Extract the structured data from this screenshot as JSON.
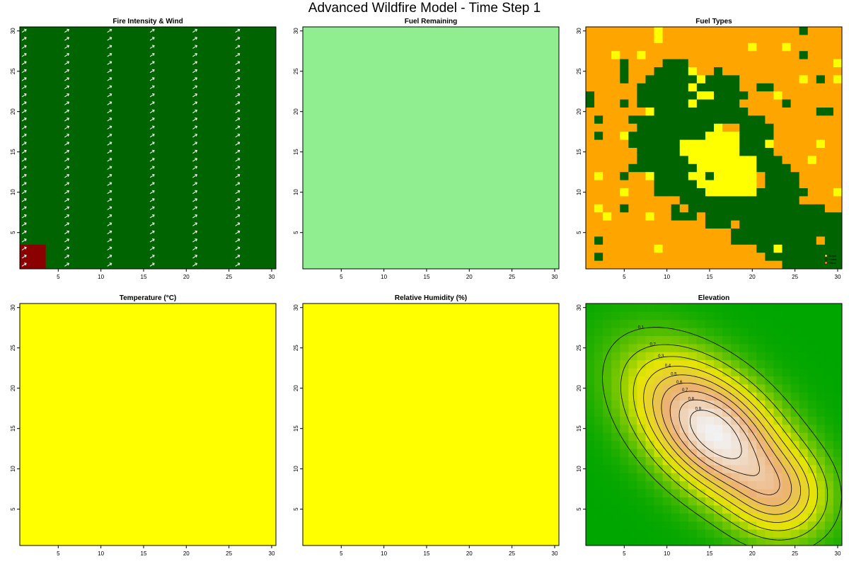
{
  "figure": {
    "title": "Advanced Wildfire Model - Time Step 1"
  },
  "colors": {
    "forest_green": "#006400",
    "burning_red": "#8B0000",
    "light_green": "#90EE90",
    "yellow": "#FFFF00",
    "orange": "#FFA500",
    "wind_arrow": "#FFFFFF"
  },
  "chart_data": [
    {
      "id": "fire",
      "type": "heatmap",
      "title": "Fire Intensity & Wind",
      "xlabel": "",
      "ylabel": "",
      "xlim": [
        0.5,
        30.5
      ],
      "ylim": [
        0.5,
        30.5
      ],
      "xticks": [
        5,
        10,
        15,
        20,
        25,
        30
      ],
      "yticks": [
        5,
        10,
        15,
        20,
        25,
        30
      ],
      "grid": false,
      "background": "#006400",
      "burning_cells": {
        "color": "#8B0000",
        "x_range": [
          1,
          3
        ],
        "y_range": [
          1,
          3
        ]
      },
      "wind": {
        "direction": "north-east",
        "color": "#FFFFFF",
        "x": [
          1,
          6,
          11,
          16,
          21,
          26
        ],
        "y_from": 1,
        "y_to": 30
      }
    },
    {
      "id": "fuel_remaining",
      "type": "heatmap",
      "title": "Fuel Remaining",
      "xlim": [
        0.5,
        30.5
      ],
      "ylim": [
        0.5,
        30.5
      ],
      "xticks": [
        5,
        10,
        15,
        20,
        25,
        30
      ],
      "yticks": [
        5,
        10,
        15,
        20,
        25,
        30
      ],
      "grid": false,
      "uniform_color": "#90EE90"
    },
    {
      "id": "fuel_types",
      "type": "heatmap",
      "title": "Fuel Types",
      "xlim": [
        0.5,
        30.5
      ],
      "ylim": [
        0.5,
        30.5
      ],
      "xticks": [
        5,
        10,
        15,
        20,
        25,
        30
      ],
      "yticks": [
        5,
        10,
        15,
        20,
        25,
        30
      ],
      "grid": false,
      "legend_position": "bottom-right",
      "categories": [
        {
          "name": "Grass",
          "color": "#FFFF00"
        },
        {
          "name": "Forest",
          "color": "#006400"
        },
        {
          "name": "Shrub",
          "color": "#FFA500"
        }
      ],
      "grid_rows_top_to_bottom": [
        "OOOOOOOOYOOOOOOOOOOOOOOOOGOOOO",
        "OOOOOOOOYOOOOOOOOOOOOOOOOOOOOO",
        "OOOOOOOOOOOOOOOOOOOYOOOYOOOOOO",
        "OOOYOOYOOOOOOOOOOOOOOOOOOGOOOO",
        "OOOOGOOOOGGGOOOOOOOOOOOOOOOOOY",
        "OOOOGOOOGGGGYOOGOOOOOOOOOOOOOO",
        "OOOOGOOGGGGGGYGGGGOOOOOOOYOGOY",
        "OOOOOOGGGGGGYGGGGGOOGGOOOOOOOO",
        "GOOOOOGGGGGGGYYGGGGOOOYOOOOOOO",
        "GOOOGOGGGGGGYGGGGGOOOOOGOOOOOO",
        "OOOOOOOYGGGGGGGGGGGOOOOOOOOGGO",
        "OGOOOGGGGGGGGGGGGGGGGOOOOOOOOO",
        "OOOOOOGGGGGGGGGYOOGGGGOOOOOOOO",
        "OGOOYGGGGGGGGGYYYYGGGGOOOOOOOO",
        "OOOOOGGGGGGYYYYYYYGGGYOOOOOYOO",
        "OOOOOOGGGGGYYYYYYYGGGGOOOOOOOO",
        "OOOOOOGGGGGGYYYYYYYYGGGOOOYOOO",
        "OOOOOGGGGGGGGYYYYYYYGGGGOOOOOO",
        "OYOOGOOYGGGGYYGYYYYYOGGGGOOOOO",
        "OOOOOOOOGGGGGYYYYYYYOGGGGOOOOO",
        "OOOOYOOOGGGGGGYYYYYYGGGGGGOOOY",
        "OOOOOOOOOOOGGGGGGGGGGGGGGOOOOO",
        "OYOOGOOOOOGOGGGGGGGGGGGGGGGGOO",
        "OOYOOOOYOOGGGOGGGGGGGGGGGGGGGG",
        "OOOOOOOOOOOOOOGGGOGGGGGGGGGGGG",
        "OOOOOOOOOOOOOOOOOGGGGGGGGGGGGG",
        "OGOOOOOOOOOOOOOOOGGGGGGGGGGOGG",
        "OOOOOOOOYOOOOOOOOOOOGGYGGGGGGG",
        "OGOOOOOOOOOOOOOOOOOOOGGGGGGGGG",
        "OOOOOOOOOOOOOOOOOOOOOOOGGGGGGG"
      ]
    },
    {
      "id": "temperature",
      "type": "heatmap",
      "title": "Temperature (°C)",
      "xlim": [
        0.5,
        30.5
      ],
      "ylim": [
        0.5,
        30.5
      ],
      "xticks": [
        5,
        10,
        15,
        20,
        25,
        30
      ],
      "yticks": [
        5,
        10,
        15,
        20,
        25,
        30
      ],
      "grid": false,
      "uniform_color": "#FFFF00"
    },
    {
      "id": "humidity",
      "type": "heatmap",
      "title": "Relative Humidity (%)",
      "xlim": [
        0.5,
        30.5
      ],
      "ylim": [
        0.5,
        30.5
      ],
      "xticks": [
        5,
        10,
        15,
        20,
        25,
        30
      ],
      "yticks": [
        5,
        10,
        15,
        20,
        25,
        30
      ],
      "grid": false,
      "uniform_color": "#FFFF00"
    },
    {
      "id": "elevation",
      "type": "heatmap",
      "title": "Elevation",
      "xlim": [
        0.5,
        30.5
      ],
      "ylim": [
        0.5,
        30.5
      ],
      "xticks": [
        5,
        10,
        15,
        20,
        25,
        30
      ],
      "yticks": [
        5,
        10,
        15,
        20,
        25,
        30
      ],
      "grid": false,
      "peak": {
        "x": 15.5,
        "y": 14.5,
        "value": 1.0
      },
      "secondary_lobe": {
        "x": 23.5,
        "y": 6.5
      },
      "contour_levels": [
        0.1,
        0.2,
        0.3,
        0.4,
        0.5,
        0.6,
        0.7,
        0.8,
        0.9
      ],
      "colorscale": [
        "#00A600",
        "#E6E600",
        "#ECB176",
        "#F2F2F2"
      ]
    }
  ]
}
